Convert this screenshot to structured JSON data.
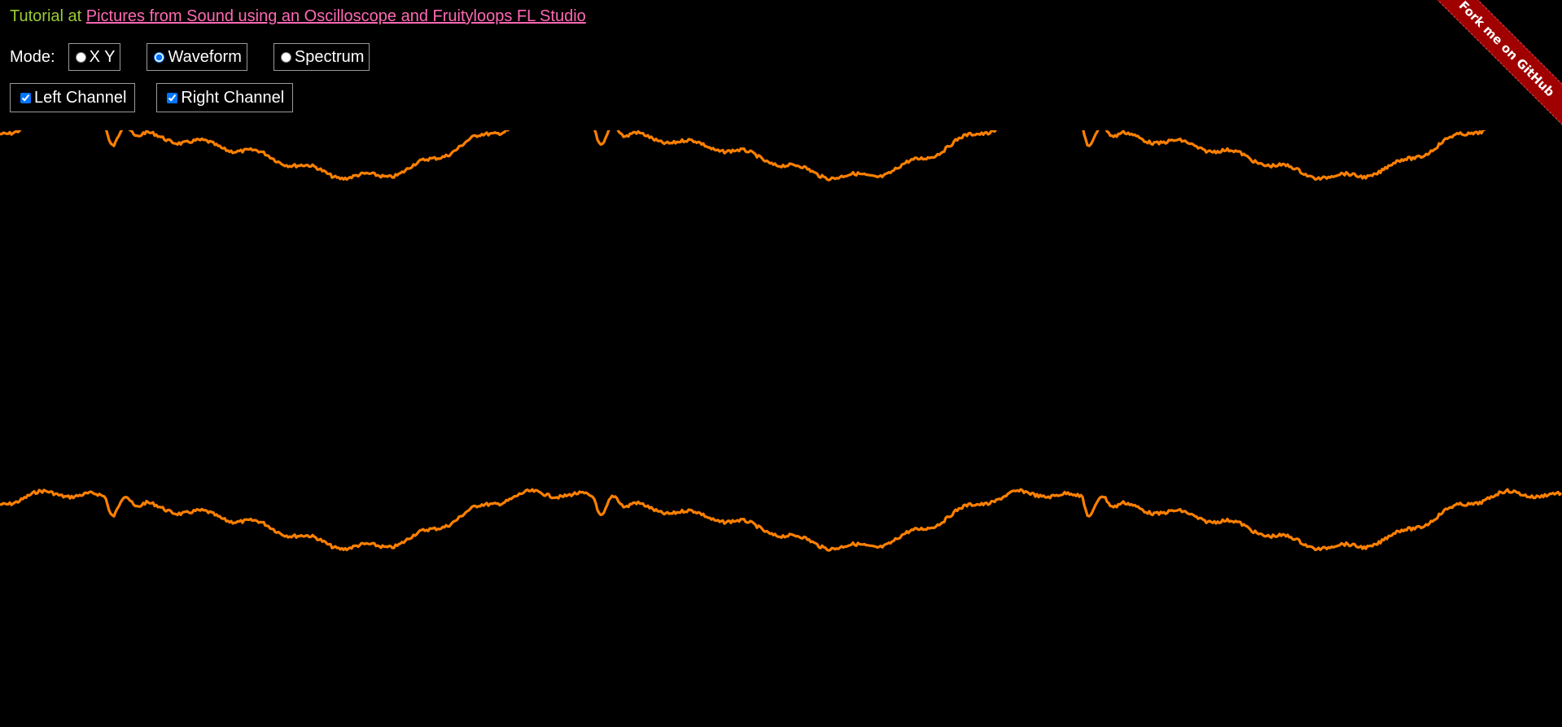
{
  "header": {
    "tutorial_prefix": "Tutorial at ",
    "tutorial_link": "Pictures from Sound using an Oscilloscope and Fruityloops FL Studio"
  },
  "mode": {
    "label": "Mode:",
    "options": [
      {
        "label": "X Y",
        "checked": false
      },
      {
        "label": "Waveform",
        "checked": true
      },
      {
        "label": "Spectrum",
        "checked": false
      }
    ]
  },
  "channels": [
    {
      "label": "Left Channel",
      "checked": true
    },
    {
      "label": "Right Channel",
      "checked": true
    }
  ],
  "ribbon": {
    "text": "Fork me on GitHub",
    "color": "#a00000"
  },
  "colors": {
    "background": "#000000",
    "waveform": "#FF8000",
    "tutorial_text": "#9ACD32",
    "link": "#FF69B4"
  },
  "waveform": {
    "channels_displayed": [
      "left",
      "right"
    ]
  }
}
